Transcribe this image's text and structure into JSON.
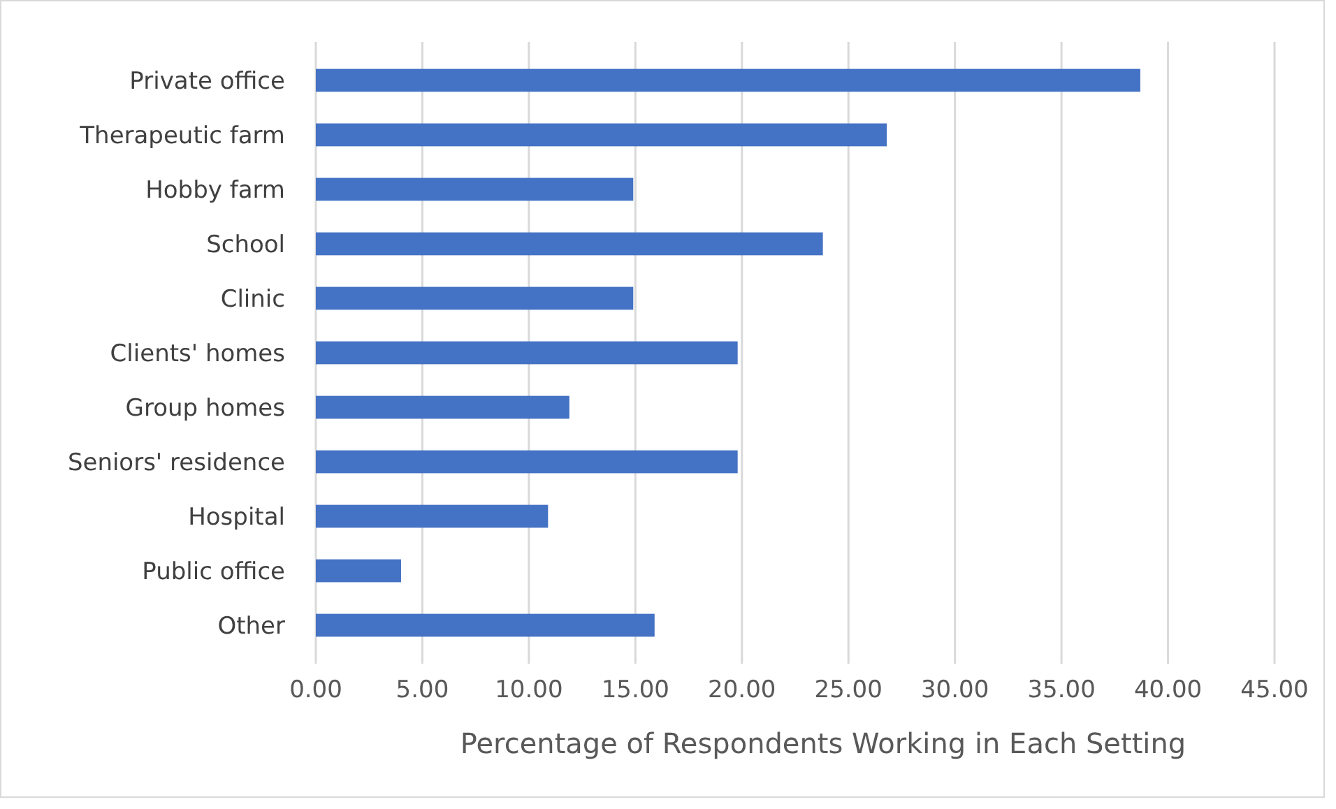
{
  "chart_data": {
    "type": "bar",
    "orientation": "horizontal",
    "xlabel": "Percentage of Respondents Working in Each Setting",
    "categories": [
      "Private office",
      "Therapeutic farm",
      "Hobby farm",
      "School",
      "Clinic",
      "Clients' homes",
      "Group homes",
      "Seniors' residence",
      "Hospital",
      "Public office",
      "Other"
    ],
    "values": [
      38.7,
      26.8,
      14.9,
      23.8,
      14.9,
      19.8,
      11.9,
      19.8,
      10.9,
      4.0,
      15.9
    ],
    "color": "#4472c4",
    "xlim": [
      0,
      45
    ],
    "xticks": [
      {
        "value": 0,
        "label": "0.00"
      },
      {
        "value": 5,
        "label": "5.00"
      },
      {
        "value": 10,
        "label": "10.00"
      },
      {
        "value": 15,
        "label": "15.00"
      },
      {
        "value": 20,
        "label": "20.00"
      },
      {
        "value": 25,
        "label": "25.00"
      },
      {
        "value": 30,
        "label": "30.00"
      },
      {
        "value": 35,
        "label": "35.00"
      },
      {
        "value": 40,
        "label": "40.00"
      },
      {
        "value": 45,
        "label": "45.00"
      }
    ],
    "grid": "x"
  }
}
